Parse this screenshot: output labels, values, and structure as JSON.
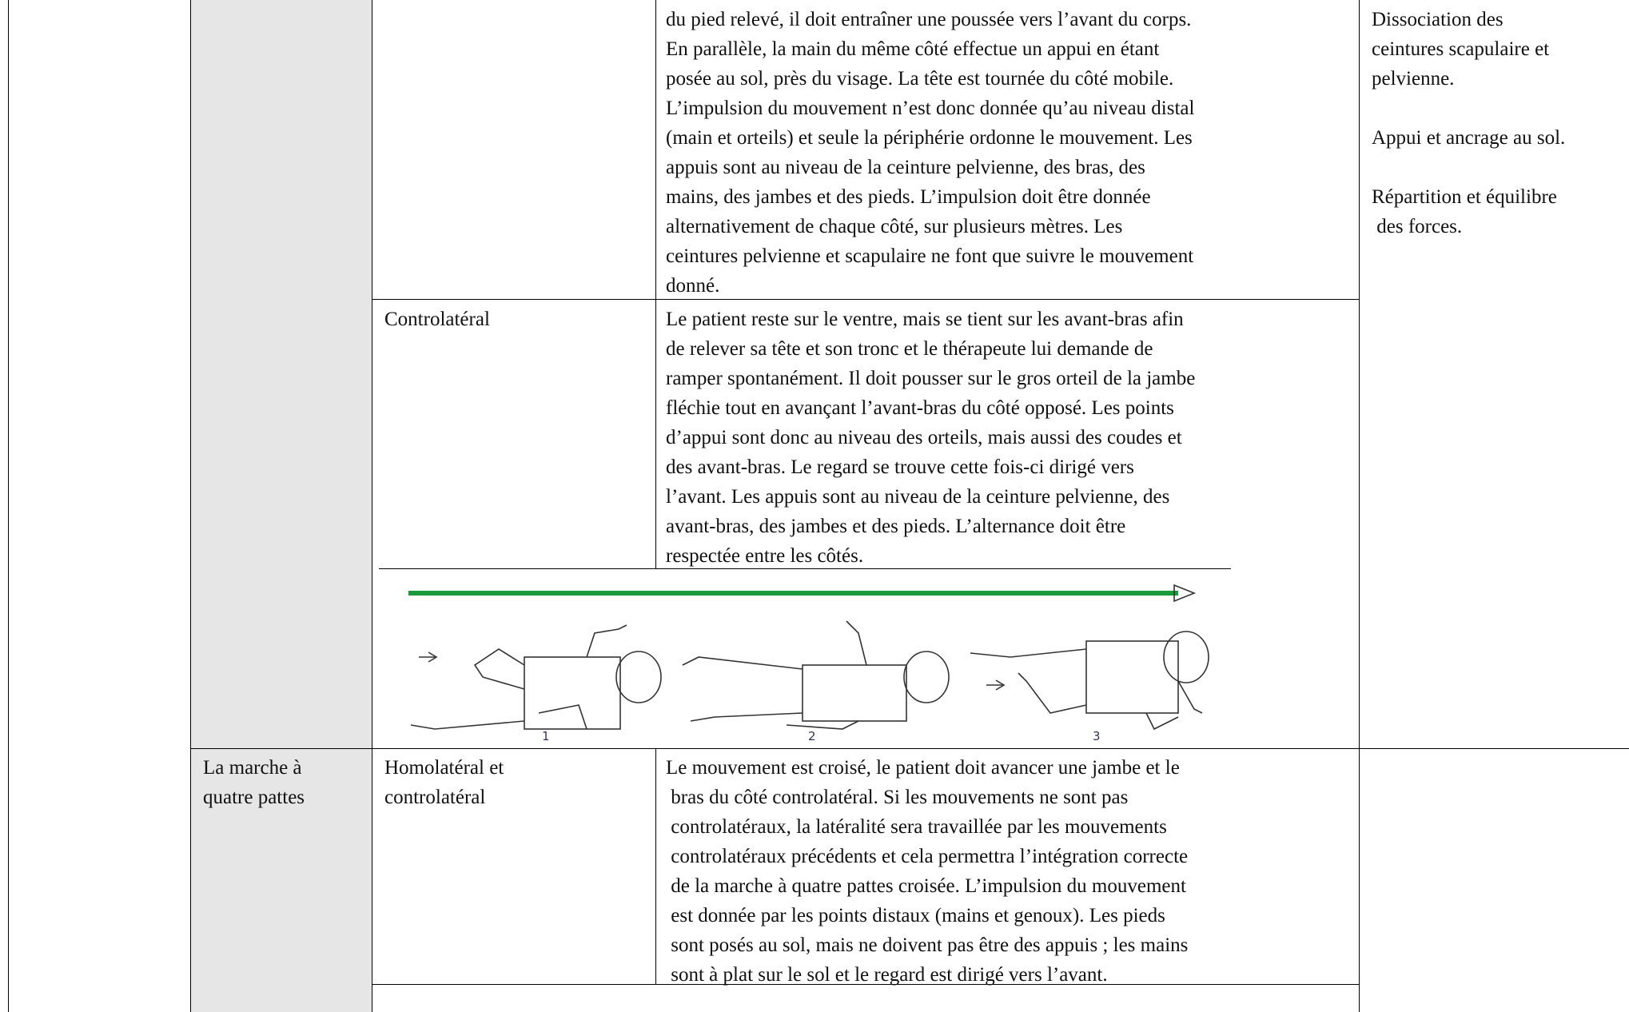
{
  "table": {
    "row1": {
      "description": [
        "du pied relevé, il doit entraîner une poussée vers l’avant du corps.",
        "En parallèle, la main du même côté effectue un appui en étant",
        "posée au sol, près du visage. La tête est tournée du côté mobile.",
        "L’impulsion du mouvement n’est donc donnée qu’au niveau distal",
        "(main et orteils) et seule la périphérie ordonne le mouvement. Les",
        "appuis sont au niveau de la ceinture pelvienne, des bras, des",
        "mains, des jambes et des pieds. L’impulsion doit être donnée",
        "alternativement de chaque côté, sur plusieurs mètres. Les",
        "ceintures pelvienne et scapulaire ne font que suivre le mouvement",
        "donné."
      ],
      "objectives": [
        "Dissociation des",
        "ceintures scapulaire et",
        "pelvienne.",
        "",
        "Appui et ancrage au sol.",
        "",
        "Répartition et équilibre",
        " des forces."
      ]
    },
    "row2": {
      "type": "Controlatéral",
      "description": [
        "Le patient reste sur le ventre, mais se tient sur les avant-bras afin",
        "de relever sa tête et son tronc et le thérapeute lui demande de",
        "ramper spontanément. Il doit pousser sur le gros orteil de la jambe",
        "fléchie tout en avançant l’avant-bras du côté opposé. Les points",
        "d’appui sont donc au niveau des orteils, mais aussi des coudes et",
        "des avant-bras. Le regard se trouve cette fois-ci dirigé vers",
        "l’avant. Les appuis sont au niveau de la ceinture pelvienne, des",
        "avant-bras, des jambes et des pieds. L’alternance doit être",
        "respectée entre les côtés."
      ]
    },
    "figure": {
      "labels": [
        "1",
        "2",
        "3"
      ]
    },
    "row3": {
      "stage": [
        "La marche à",
        "quatre pattes"
      ],
      "type": [
        "Homolatéral et",
        "controlatéral"
      ],
      "description": [
        "Le mouvement est croisé, le patient doit avancer une jambe et le",
        " bras du côté controlatéral. Si les mouvements ne sont pas",
        " controlatéraux, la latéralité sera travaillée par les mouvements",
        " controlatéraux précédents et cela permettra l’intégration correcte",
        " de la marche à quatre pattes croisée. L’impulsion du mouvement",
        " est donnée par les points distaux (mains et genoux). Les pieds",
        " sont posés au sol, mais ne doivent pas être des appuis ; les mains",
        " sont à plat sur le sol et le regard est dirigé vers l’avant."
      ]
    }
  }
}
